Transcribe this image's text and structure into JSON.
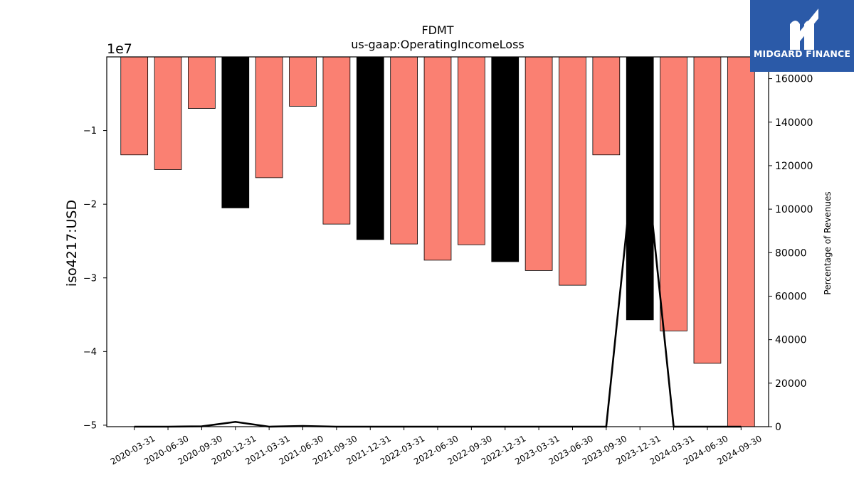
{
  "chart_data": {
    "type": "bar",
    "title": "FDMT",
    "subtitle": "us-gaap:OperatingIncomeLoss",
    "ylabel": "iso4217:USD",
    "y_offset_label": "1e7",
    "y2label": "Percentage of Revenues",
    "categories": [
      "2020-03-31",
      "2020-06-30",
      "2020-09-30",
      "2020-12-31",
      "2021-03-31",
      "2021-06-30",
      "2021-09-30",
      "2021-12-31",
      "2022-03-31",
      "2022-06-30",
      "2022-09-30",
      "2022-12-31",
      "2023-03-31",
      "2023-06-30",
      "2023-09-30",
      "2023-12-31",
      "2024-03-31",
      "2024-06-30",
      "2024-09-30"
    ],
    "values": [
      -13300000,
      -15300000,
      -7000000,
      -20500000,
      -16400000,
      -6700000,
      -22700000,
      -24800000,
      -25400000,
      -27600000,
      -25500000,
      -27800000,
      -29000000,
      -31000000,
      -13300000,
      -35700000,
      -37200000,
      -41600000,
      -50200000
    ],
    "bar_colors": [
      "#fa8072",
      "#fa8072",
      "#fa8072",
      "#000000",
      "#fa8072",
      "#fa8072",
      "#fa8072",
      "#000000",
      "#fa8072",
      "#fa8072",
      "#fa8072",
      "#000000",
      "#fa8072",
      "#fa8072",
      "#fa8072",
      "#000000",
      "#fa8072",
      "#fa8072",
      "#fa8072"
    ],
    "ylim": [
      -50200000,
      0
    ],
    "yticks": [
      -10000000,
      -20000000,
      -30000000,
      -40000000,
      -50000000
    ],
    "ytick_labels": [
      "−1",
      "−2",
      "−3",
      "−4",
      "−5"
    ],
    "y2lim": [
      0,
      170000
    ],
    "y2ticks": [
      0,
      20000,
      40000,
      60000,
      80000,
      100000,
      120000,
      140000,
      160000
    ],
    "y2tick_labels": [
      "0",
      "20000",
      "40000",
      "60000",
      "80000",
      "100000",
      "120000",
      "140000",
      "160000"
    ],
    "line_series": {
      "axis": "right",
      "color": "#000000",
      "values": [
        0,
        0,
        150,
        2200,
        0,
        300,
        0,
        0,
        0,
        0,
        0,
        0,
        0,
        0,
        0,
        150000,
        0,
        0,
        0
      ]
    },
    "grid": false
  },
  "logo": {
    "text": "MIDGARD FINANCE"
  }
}
